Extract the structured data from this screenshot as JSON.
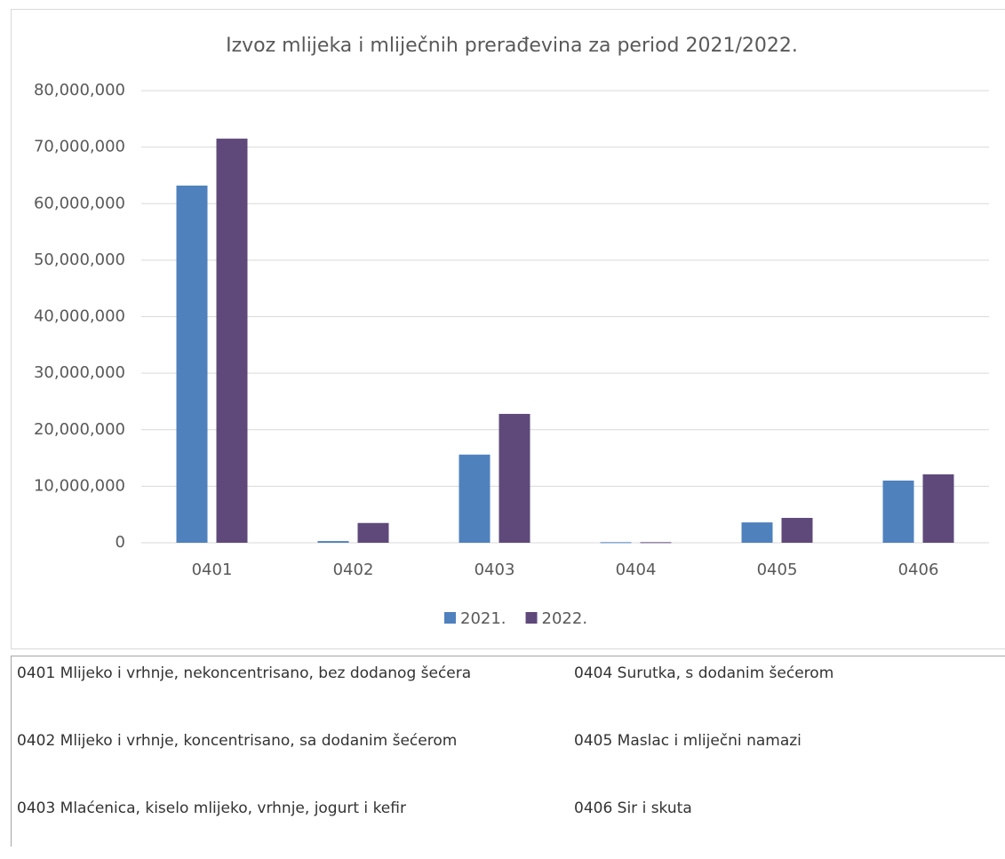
{
  "chart_data": {
    "type": "bar",
    "title": "Izvoz mlijeka i mliječnih prerađevina za period 2021/2022.",
    "categories": [
      "0401",
      "0402",
      "0403",
      "0404",
      "0405",
      "0406"
    ],
    "series": [
      {
        "name": "2021.",
        "color": "#4f81bd",
        "values": [
          63200000,
          300000,
          15600000,
          100000,
          3600000,
          11000000
        ]
      },
      {
        "name": "2022.",
        "color": "#5f497a",
        "values": [
          71500000,
          3500000,
          22800000,
          100000,
          4400000,
          12100000
        ]
      }
    ],
    "ylim": [
      0,
      80000000
    ],
    "yticks": [
      0,
      {
        "value": 10000000,
        "label": "10,000,000"
      },
      {
        "value": 20000000,
        "label": "20,000,000"
      },
      {
        "value": 30000000,
        "label": "30,000,000"
      },
      {
        "value": 40000000,
        "label": "40,000,000"
      },
      {
        "value": 50000000,
        "label": "50,000,000"
      },
      {
        "value": 60000000,
        "label": "60,000,000"
      },
      {
        "value": 70000000,
        "label": "70,000,000"
      },
      {
        "value": 80000000,
        "label": "80,000,000"
      }
    ],
    "grid": true,
    "legend": "bottom"
  },
  "legend_table": {
    "rows": [
      [
        "0401 Mlijeko i vrhnje, nekoncentrisano, bez dodanog šećera",
        "0404 Surutka, s dodanim šećerom"
      ],
      [
        "0402 Mlijeko i vrhnje, koncentrisano, sa dodanim šećerom",
        "0405 Maslac i mliječni namazi"
      ],
      [
        "0403 Mlaćenica, kiselo mlijeko, vrhnje, jogurt i kefir",
        "0406 Sir i skuta"
      ]
    ]
  }
}
